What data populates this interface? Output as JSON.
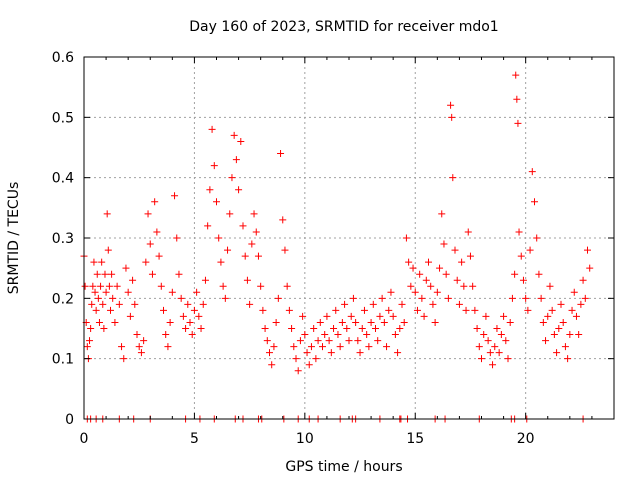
{
  "chart_data": {
    "type": "scatter",
    "title": "Day 160 of 2023, SRMTID for receiver mdo1",
    "xlabel": "GPS time / hours",
    "ylabel": "SRMTID / TECUs",
    "xlim": [
      0,
      24
    ],
    "ylim": [
      0,
      0.6
    ],
    "xticks": [
      0,
      5,
      10,
      15,
      20
    ],
    "xtick_labels": [
      "0",
      "5",
      "10",
      "15",
      "20"
    ],
    "yticks": [
      0,
      0.1,
      0.2,
      0.3,
      0.4,
      0.5,
      0.6
    ],
    "ytick_labels": [
      "0",
      "0.1",
      "0.2",
      "0.3",
      "0.4",
      "0.5",
      "0.6"
    ],
    "grid": true,
    "marker": "+",
    "color": "#ff0000",
    "series": [
      {
        "name": "SRMTID",
        "points": [
          [
            0.0,
            0.27
          ],
          [
            0.05,
            0.22
          ],
          [
            0.1,
            0.16
          ],
          [
            0.15,
            0.12
          ],
          [
            0.2,
            0.1
          ],
          [
            0.25,
            0.13
          ],
          [
            0.3,
            0.15
          ],
          [
            0.35,
            0.19
          ],
          [
            0.4,
            0.22
          ],
          [
            0.45,
            0.26
          ],
          [
            0.5,
            0.21
          ],
          [
            0.55,
            0.18
          ],
          [
            0.6,
            0.24
          ],
          [
            0.65,
            0.2
          ],
          [
            0.7,
            0.16
          ],
          [
            0.75,
            0.22
          ],
          [
            0.8,
            0.26
          ],
          [
            0.85,
            0.19
          ],
          [
            0.9,
            0.15
          ],
          [
            0.95,
            0.24
          ],
          [
            1.0,
            0.21
          ],
          [
            1.05,
            0.34
          ],
          [
            1.1,
            0.28
          ],
          [
            1.15,
            0.22
          ],
          [
            1.2,
            0.18
          ],
          [
            1.25,
            0.24
          ],
          [
            1.3,
            0.2
          ],
          [
            1.4,
            0.16
          ],
          [
            1.5,
            0.22
          ],
          [
            1.6,
            0.19
          ],
          [
            1.7,
            0.12
          ],
          [
            1.8,
            0.1
          ],
          [
            1.9,
            0.25
          ],
          [
            2.0,
            0.21
          ],
          [
            2.1,
            0.17
          ],
          [
            2.2,
            0.23
          ],
          [
            2.3,
            0.19
          ],
          [
            2.4,
            0.14
          ],
          [
            2.5,
            0.12
          ],
          [
            2.6,
            0.11
          ],
          [
            2.7,
            0.13
          ],
          [
            2.8,
            0.26
          ],
          [
            2.9,
            0.34
          ],
          [
            3.0,
            0.29
          ],
          [
            3.1,
            0.24
          ],
          [
            3.2,
            0.36
          ],
          [
            3.3,
            0.31
          ],
          [
            3.4,
            0.27
          ],
          [
            3.5,
            0.22
          ],
          [
            3.6,
            0.18
          ],
          [
            3.7,
            0.14
          ],
          [
            3.8,
            0.12
          ],
          [
            3.9,
            0.16
          ],
          [
            4.0,
            0.21
          ],
          [
            4.1,
            0.37
          ],
          [
            4.2,
            0.3
          ],
          [
            4.3,
            0.24
          ],
          [
            4.4,
            0.2
          ],
          [
            4.5,
            0.17
          ],
          [
            4.6,
            0.15
          ],
          [
            4.7,
            0.19
          ],
          [
            4.8,
            0.16
          ],
          [
            4.9,
            0.14
          ],
          [
            5.0,
            0.18
          ],
          [
            5.1,
            0.21
          ],
          [
            5.2,
            0.17
          ],
          [
            5.3,
            0.15
          ],
          [
            5.4,
            0.19
          ],
          [
            5.5,
            0.23
          ],
          [
            5.6,
            0.32
          ],
          [
            5.7,
            0.38
          ],
          [
            5.8,
            0.48
          ],
          [
            5.9,
            0.42
          ],
          [
            6.0,
            0.36
          ],
          [
            6.1,
            0.3
          ],
          [
            6.2,
            0.26
          ],
          [
            6.3,
            0.22
          ],
          [
            6.4,
            0.2
          ],
          [
            6.5,
            0.28
          ],
          [
            6.6,
            0.34
          ],
          [
            6.7,
            0.4
          ],
          [
            6.8,
            0.47
          ],
          [
            6.9,
            0.43
          ],
          [
            7.0,
            0.38
          ],
          [
            7.1,
            0.46
          ],
          [
            7.2,
            0.32
          ],
          [
            7.3,
            0.27
          ],
          [
            7.4,
            0.23
          ],
          [
            7.5,
            0.19
          ],
          [
            7.6,
            0.29
          ],
          [
            7.7,
            0.34
          ],
          [
            7.8,
            0.31
          ],
          [
            7.9,
            0.27
          ],
          [
            8.0,
            0.22
          ],
          [
            8.1,
            0.18
          ],
          [
            8.2,
            0.15
          ],
          [
            8.3,
            0.13
          ],
          [
            8.4,
            0.11
          ],
          [
            8.5,
            0.09
          ],
          [
            8.6,
            0.12
          ],
          [
            8.7,
            0.16
          ],
          [
            8.8,
            0.2
          ],
          [
            8.9,
            0.44
          ],
          [
            9.0,
            0.33
          ],
          [
            9.1,
            0.28
          ],
          [
            9.2,
            0.22
          ],
          [
            9.3,
            0.18
          ],
          [
            9.4,
            0.15
          ],
          [
            9.5,
            0.12
          ],
          [
            9.6,
            0.1
          ],
          [
            9.7,
            0.08
          ],
          [
            9.8,
            0.13
          ],
          [
            9.9,
            0.17
          ],
          [
            10.0,
            0.14
          ],
          [
            10.1,
            0.11
          ],
          [
            10.2,
            0.09
          ],
          [
            10.3,
            0.12
          ],
          [
            10.4,
            0.15
          ],
          [
            10.5,
            0.1
          ],
          [
            10.6,
            0.13
          ],
          [
            10.7,
            0.16
          ],
          [
            10.8,
            0.12
          ],
          [
            10.9,
            0.14
          ],
          [
            11.0,
            0.17
          ],
          [
            11.1,
            0.13
          ],
          [
            11.2,
            0.11
          ],
          [
            11.3,
            0.15
          ],
          [
            11.4,
            0.18
          ],
          [
            11.5,
            0.14
          ],
          [
            11.6,
            0.12
          ],
          [
            11.7,
            0.16
          ],
          [
            11.8,
            0.19
          ],
          [
            11.9,
            0.15
          ],
          [
            12.0,
            0.13
          ],
          [
            12.1,
            0.17
          ],
          [
            12.2,
            0.2
          ],
          [
            12.3,
            0.16
          ],
          [
            12.4,
            0.13
          ],
          [
            12.5,
            0.11
          ],
          [
            12.6,
            0.15
          ],
          [
            12.7,
            0.18
          ],
          [
            12.8,
            0.14
          ],
          [
            12.9,
            0.12
          ],
          [
            13.0,
            0.16
          ],
          [
            13.1,
            0.19
          ],
          [
            13.2,
            0.15
          ],
          [
            13.3,
            0.13
          ],
          [
            13.4,
            0.17
          ],
          [
            13.5,
            0.2
          ],
          [
            13.6,
            0.16
          ],
          [
            13.7,
            0.12
          ],
          [
            13.8,
            0.18
          ],
          [
            13.9,
            0.21
          ],
          [
            14.0,
            0.17
          ],
          [
            14.1,
            0.14
          ],
          [
            14.2,
            0.11
          ],
          [
            14.3,
            0.15
          ],
          [
            14.4,
            0.19
          ],
          [
            14.5,
            0.16
          ],
          [
            14.6,
            0.3
          ],
          [
            14.7,
            0.26
          ],
          [
            14.8,
            0.22
          ],
          [
            14.9,
            0.25
          ],
          [
            15.0,
            0.21
          ],
          [
            15.1,
            0.18
          ],
          [
            15.2,
            0.24
          ],
          [
            15.3,
            0.2
          ],
          [
            15.4,
            0.17
          ],
          [
            15.5,
            0.23
          ],
          [
            15.6,
            0.26
          ],
          [
            15.7,
            0.22
          ],
          [
            15.8,
            0.19
          ],
          [
            15.9,
            0.16
          ],
          [
            16.0,
            0.21
          ],
          [
            16.1,
            0.25
          ],
          [
            16.2,
            0.34
          ],
          [
            16.3,
            0.29
          ],
          [
            16.4,
            0.24
          ],
          [
            16.5,
            0.2
          ],
          [
            16.6,
            0.52
          ],
          [
            16.65,
            0.5
          ],
          [
            16.7,
            0.4
          ],
          [
            16.8,
            0.28
          ],
          [
            16.9,
            0.23
          ],
          [
            17.0,
            0.19
          ],
          [
            17.1,
            0.26
          ],
          [
            17.2,
            0.22
          ],
          [
            17.3,
            0.18
          ],
          [
            17.4,
            0.31
          ],
          [
            17.5,
            0.27
          ],
          [
            17.6,
            0.22
          ],
          [
            17.7,
            0.18
          ],
          [
            17.8,
            0.15
          ],
          [
            17.9,
            0.12
          ],
          [
            18.0,
            0.1
          ],
          [
            18.1,
            0.14
          ],
          [
            18.2,
            0.17
          ],
          [
            18.3,
            0.13
          ],
          [
            18.4,
            0.11
          ],
          [
            18.5,
            0.09
          ],
          [
            18.6,
            0.12
          ],
          [
            18.7,
            0.15
          ],
          [
            18.8,
            0.11
          ],
          [
            18.9,
            0.14
          ],
          [
            19.0,
            0.17
          ],
          [
            19.1,
            0.13
          ],
          [
            19.2,
            0.1
          ],
          [
            19.3,
            0.16
          ],
          [
            19.4,
            0.2
          ],
          [
            19.5,
            0.24
          ],
          [
            19.55,
            0.57
          ],
          [
            19.6,
            0.53
          ],
          [
            19.65,
            0.49
          ],
          [
            19.7,
            0.31
          ],
          [
            19.8,
            0.27
          ],
          [
            19.9,
            0.23
          ],
          [
            20.0,
            0.2
          ],
          [
            20.1,
            0.18
          ],
          [
            20.2,
            0.28
          ],
          [
            20.3,
            0.41
          ],
          [
            20.4,
            0.36
          ],
          [
            20.5,
            0.3
          ],
          [
            20.6,
            0.24
          ],
          [
            20.7,
            0.2
          ],
          [
            20.8,
            0.16
          ],
          [
            20.9,
            0.13
          ],
          [
            21.0,
            0.17
          ],
          [
            21.1,
            0.22
          ],
          [
            21.2,
            0.18
          ],
          [
            21.3,
            0.14
          ],
          [
            21.4,
            0.11
          ],
          [
            21.5,
            0.15
          ],
          [
            21.6,
            0.19
          ],
          [
            21.7,
            0.16
          ],
          [
            21.8,
            0.12
          ],
          [
            21.9,
            0.1
          ],
          [
            22.0,
            0.14
          ],
          [
            22.1,
            0.18
          ],
          [
            22.2,
            0.21
          ],
          [
            22.3,
            0.17
          ],
          [
            22.4,
            0.14
          ],
          [
            22.5,
            0.19
          ],
          [
            22.6,
            0.23
          ],
          [
            22.7,
            0.2
          ],
          [
            22.8,
            0.28
          ],
          [
            22.9,
            0.25
          ],
          [
            0.15,
            0.0
          ],
          [
            0.3,
            0.0
          ],
          [
            0.55,
            0.0
          ],
          [
            0.85,
            0.0
          ],
          [
            1.6,
            0.0
          ],
          [
            2.25,
            0.0
          ],
          [
            3.0,
            0.0
          ],
          [
            4.6,
            0.0
          ],
          [
            5.25,
            0.0
          ],
          [
            5.9,
            0.0
          ],
          [
            6.85,
            0.0
          ],
          [
            7.2,
            0.0
          ],
          [
            7.9,
            0.0
          ],
          [
            8.05,
            0.0
          ],
          [
            9.05,
            0.0
          ],
          [
            9.7,
            0.0
          ],
          [
            10.2,
            0.0
          ],
          [
            10.6,
            0.0
          ],
          [
            11.6,
            0.0
          ],
          [
            12.15,
            0.0
          ],
          [
            12.3,
            0.0
          ],
          [
            13.4,
            0.0
          ],
          [
            14.3,
            0.0
          ],
          [
            14.35,
            0.0
          ],
          [
            14.65,
            0.0
          ],
          [
            15.9,
            0.0
          ],
          [
            16.35,
            0.0
          ],
          [
            17.9,
            0.0
          ],
          [
            19.35,
            0.0
          ],
          [
            19.5,
            0.0
          ],
          [
            20.05,
            0.0
          ],
          [
            22.6,
            0.0
          ]
        ]
      }
    ]
  }
}
